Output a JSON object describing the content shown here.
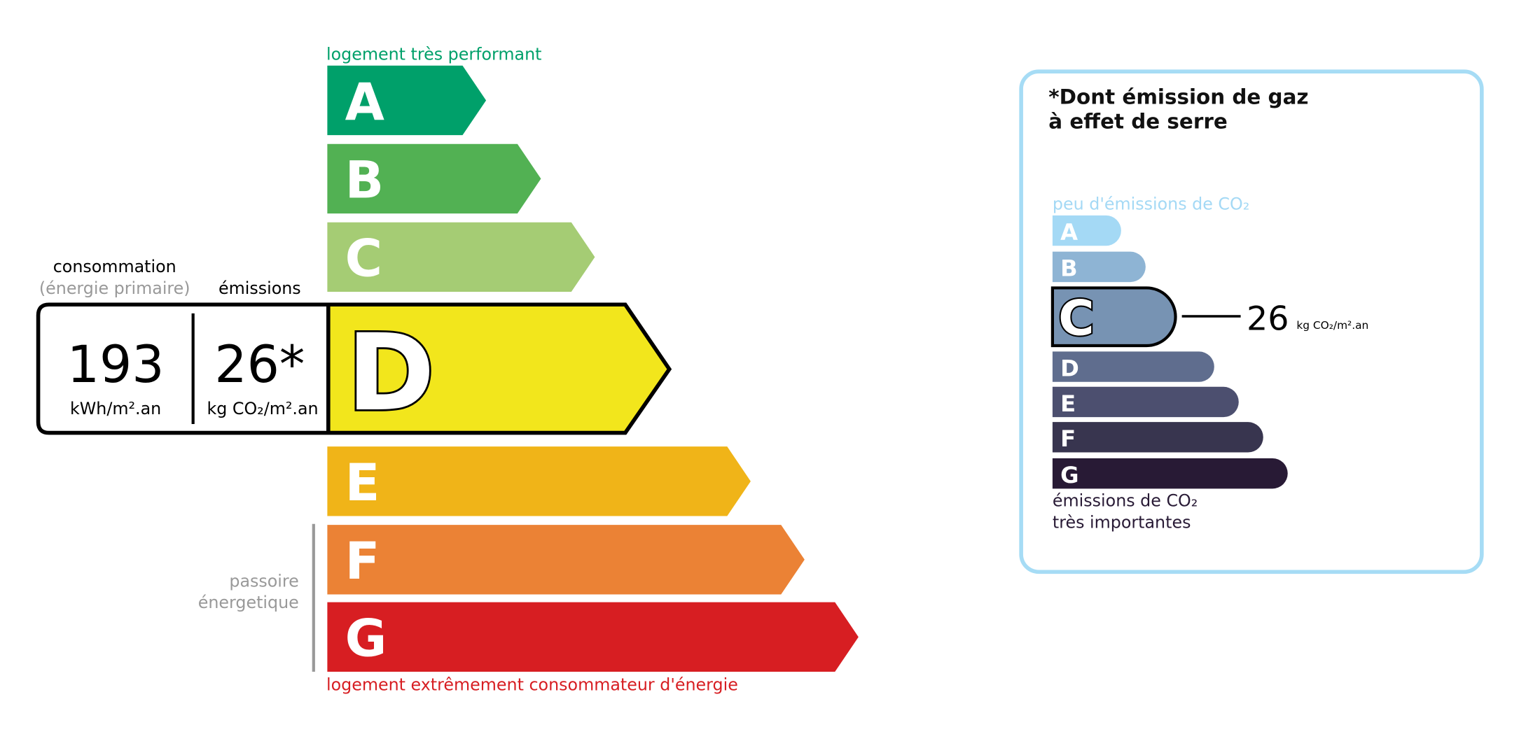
{
  "energy": {
    "top_label": "logement très performant",
    "bottom_label": "logement extrêmement consommateur d'énergie",
    "passoire_line1": "passoire",
    "passoire_line2": "énergetique",
    "consommation_label": "consommation",
    "primary_label": "(énergie primaire)",
    "emissions_label": "émissions",
    "consumption_value": "193",
    "consumption_unit": "kWh/m².an",
    "emission_value": "26*",
    "emission_unit": "kg CO₂/m².an",
    "current_class": "D",
    "classes": [
      {
        "letter": "A",
        "color": "#00a06a"
      },
      {
        "letter": "B",
        "color": "#52b153"
      },
      {
        "letter": "C",
        "color": "#a5cc74"
      },
      {
        "letter": "D",
        "color": "#f2e61c"
      },
      {
        "letter": "E",
        "color": "#f0b418"
      },
      {
        "letter": "F",
        "color": "#eb8235"
      },
      {
        "letter": "G",
        "color": "#d71e22"
      }
    ]
  },
  "ghg": {
    "title_line1": "*Dont émission de gaz",
    "title_line2": "à effet de serre",
    "top_label": "peu d'émissions de CO₂",
    "bottom_label_line1": "émissions de CO₂",
    "bottom_label_line2": "très importantes",
    "value": "26",
    "unit": "kg CO₂/m².an",
    "current_class": "C",
    "border_color": "#a6dcf5",
    "classes": [
      {
        "letter": "A",
        "color": "#a4d9f5"
      },
      {
        "letter": "B",
        "color": "#8eb4d4"
      },
      {
        "letter": "C",
        "color": "#7793b3"
      },
      {
        "letter": "D",
        "color": "#5f6d8e"
      },
      {
        "letter": "E",
        "color": "#4c4f6f"
      },
      {
        "letter": "F",
        "color": "#38354f"
      },
      {
        "letter": "G",
        "color": "#281a35"
      }
    ]
  }
}
